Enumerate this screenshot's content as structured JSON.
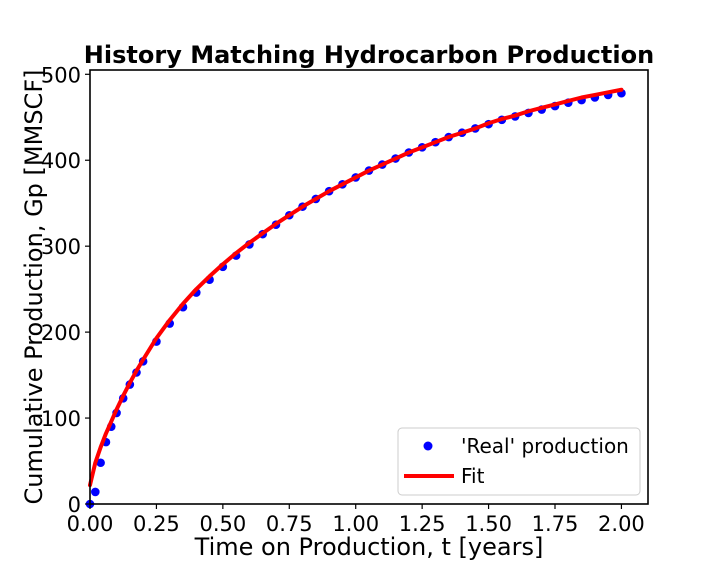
{
  "chart_data": {
    "type": "scatter",
    "title": "History Matching Hydrocarbon Production",
    "xlabel": "Time on Production, t [years]",
    "ylabel": "Cumulative Production, Gp [MMSCF]",
    "xlim": [
      0,
      2.1
    ],
    "ylim": [
      0,
      505
    ],
    "xticks": [
      "0.00",
      "0.25",
      "0.50",
      "0.75",
      "1.00",
      "1.25",
      "1.50",
      "1.75",
      "2.00"
    ],
    "yticks": [
      "0",
      "100",
      "200",
      "300",
      "400",
      "500"
    ],
    "grid": false,
    "legend_position": "lower-right",
    "series": [
      {
        "name": "'Real' production",
        "kind": "points",
        "color": "#0000ff",
        "x": [
          0.0,
          0.02,
          0.04,
          0.06,
          0.08,
          0.1,
          0.125,
          0.15,
          0.175,
          0.2,
          0.25,
          0.3,
          0.35,
          0.4,
          0.45,
          0.5,
          0.55,
          0.6,
          0.65,
          0.7,
          0.75,
          0.8,
          0.85,
          0.9,
          0.95,
          1.0,
          1.05,
          1.1,
          1.15,
          1.2,
          1.25,
          1.3,
          1.35,
          1.4,
          1.45,
          1.5,
          1.55,
          1.6,
          1.65,
          1.7,
          1.75,
          1.8,
          1.85,
          1.9,
          1.95,
          2.0
        ],
        "y": [
          0,
          14,
          48,
          72,
          90,
          106,
          123,
          139,
          153,
          166,
          189,
          210,
          229,
          246,
          261,
          276,
          289,
          302,
          314,
          325,
          336,
          346,
          355,
          364,
          372,
          380,
          388,
          395,
          402,
          409,
          415,
          421,
          427,
          432,
          437,
          442,
          447,
          451,
          455,
          459,
          463,
          467,
          470,
          473,
          476,
          478
        ]
      },
      {
        "name": "Fit",
        "kind": "line",
        "color": "#ff0000",
        "x": [
          0.0,
          0.01,
          0.02,
          0.04,
          0.06,
          0.08,
          0.1,
          0.125,
          0.15,
          0.175,
          0.2,
          0.25,
          0.3,
          0.35,
          0.4,
          0.45,
          0.5,
          0.55,
          0.6,
          0.65,
          0.7,
          0.75,
          0.8,
          0.85,
          0.9,
          0.95,
          1.0,
          1.05,
          1.1,
          1.15,
          1.2,
          1.25,
          1.3,
          1.35,
          1.4,
          1.45,
          1.5,
          1.55,
          1.6,
          1.65,
          1.7,
          1.75,
          1.8,
          1.85,
          1.9,
          1.95,
          2.0
        ],
        "y": [
          22,
          35,
          48,
          66,
          82,
          96,
          110,
          126,
          141,
          155,
          168,
          193,
          214,
          233,
          250,
          265,
          279,
          292,
          304,
          315,
          326,
          336,
          346,
          355,
          364,
          372,
          380,
          388,
          395,
          402,
          409,
          415,
          421,
          427,
          432,
          437,
          443,
          448,
          452,
          457,
          461,
          465,
          469,
          473,
          476,
          479,
          482
        ]
      }
    ]
  }
}
